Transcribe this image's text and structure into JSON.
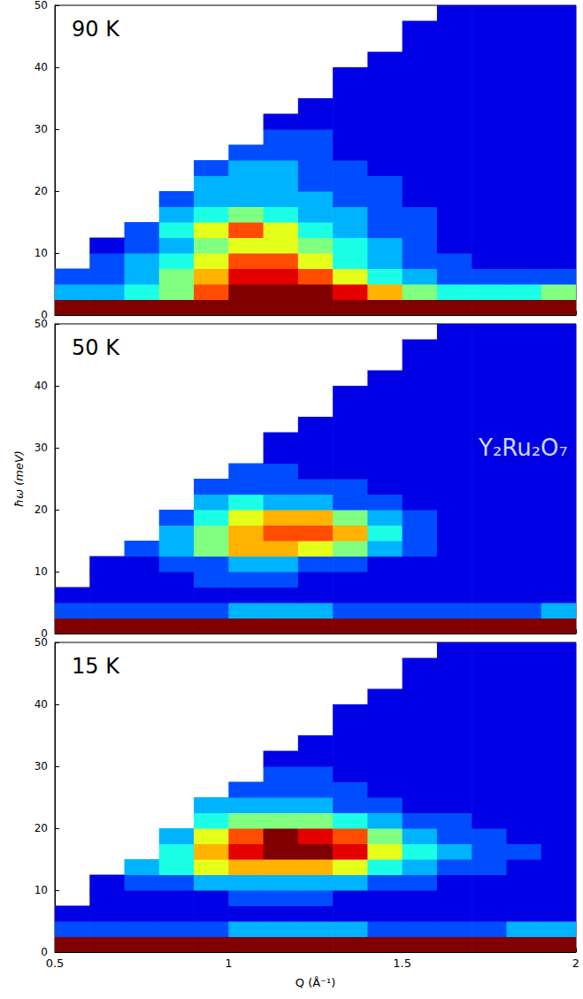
{
  "chart_data": [
    {
      "type": "heatmap",
      "title": "90 K",
      "x_edges": [
        0.5,
        0.6,
        0.7,
        0.8,
        0.9,
        1.0,
        1.1,
        1.2,
        1.3,
        1.4,
        1.5,
        1.6,
        1.7,
        1.8,
        1.9,
        2.0
      ],
      "y_edges": [
        0,
        2.5,
        5,
        7.5,
        10,
        12.5,
        15,
        17.5,
        20,
        22.5,
        25,
        27.5,
        30,
        32.5,
        35,
        37.5,
        40,
        42.5,
        45,
        47.5,
        50
      ],
      "z": [
        [
          10,
          10,
          10,
          10,
          10,
          10,
          10,
          10,
          10,
          10,
          10,
          10,
          10,
          10,
          10
        ],
        [
          3,
          3,
          4,
          5,
          8,
          10,
          10,
          10,
          9,
          7,
          5,
          4,
          4,
          4,
          5
        ],
        [
          2,
          2,
          3,
          5,
          7,
          9,
          9,
          8,
          6,
          4,
          3,
          2,
          2,
          2,
          2
        ],
        [
          null,
          2,
          3,
          4,
          6,
          8,
          8,
          6,
          4,
          3,
          2,
          2,
          1,
          1,
          1
        ],
        [
          null,
          1,
          2,
          3,
          5,
          6,
          6,
          5,
          4,
          3,
          2,
          1,
          1,
          1,
          1
        ],
        [
          null,
          null,
          2,
          4,
          6,
          8,
          6,
          4,
          3,
          2,
          2,
          1,
          1,
          1,
          1
        ],
        [
          null,
          null,
          null,
          3,
          4,
          5,
          4,
          3,
          3,
          2,
          2,
          1,
          1,
          1,
          1
        ],
        [
          null,
          null,
          null,
          2,
          3,
          3,
          3,
          3,
          2,
          2,
          1,
          1,
          1,
          1,
          1
        ],
        [
          null,
          null,
          null,
          null,
          3,
          3,
          3,
          2,
          2,
          2,
          1,
          1,
          1,
          1,
          1
        ],
        [
          null,
          null,
          null,
          null,
          2,
          3,
          3,
          2,
          2,
          1,
          1,
          1,
          1,
          1,
          1
        ],
        [
          null,
          null,
          null,
          null,
          null,
          2,
          2,
          2,
          1,
          1,
          1,
          1,
          1,
          1,
          1
        ],
        [
          null,
          null,
          null,
          null,
          null,
          null,
          2,
          2,
          1,
          1,
          1,
          1,
          1,
          1,
          1
        ],
        [
          null,
          null,
          null,
          null,
          null,
          null,
          1,
          1,
          1,
          1,
          1,
          1,
          1,
          1,
          1
        ],
        [
          null,
          null,
          null,
          null,
          null,
          null,
          null,
          1,
          1,
          1,
          1,
          1,
          1,
          1,
          1
        ],
        [
          null,
          null,
          null,
          null,
          null,
          null,
          null,
          null,
          1,
          1,
          1,
          1,
          1,
          1,
          1
        ],
        [
          null,
          null,
          null,
          null,
          null,
          null,
          null,
          null,
          1,
          1,
          1,
          1,
          1,
          1,
          1
        ],
        [
          null,
          null,
          null,
          null,
          null,
          null,
          null,
          null,
          null,
          1,
          1,
          1,
          1,
          1,
          1
        ],
        [
          null,
          null,
          null,
          null,
          null,
          null,
          null,
          null,
          null,
          null,
          1,
          1,
          1,
          1,
          1
        ],
        [
          null,
          null,
          null,
          null,
          null,
          null,
          null,
          null,
          null,
          null,
          1,
          1,
          1,
          1,
          1
        ],
        [
          null,
          null,
          null,
          null,
          null,
          null,
          null,
          null,
          null,
          null,
          null,
          1,
          1,
          1,
          1
        ]
      ],
      "zlim": [
        0,
        10
      ],
      "xlim": [
        0.5,
        2
      ],
      "xticks": [
        0.5,
        1,
        1.5,
        2
      ],
      "ylim": [
        0,
        50
      ],
      "yticks": [
        0,
        10,
        20,
        30,
        40,
        50
      ],
      "tick_labels": "y"
    },
    {
      "type": "heatmap",
      "title": "50 K",
      "ylabel": "ħω (meV)",
      "annotation": "Y₂Ru₂O₇",
      "x_edges": [
        0.5,
        0.6,
        0.7,
        0.8,
        0.9,
        1.0,
        1.1,
        1.2,
        1.3,
        1.4,
        1.5,
        1.6,
        1.7,
        1.8,
        1.9,
        2.0
      ],
      "y_edges": [
        0,
        2.5,
        5,
        7.5,
        10,
        12.5,
        15,
        17.5,
        20,
        22.5,
        25,
        27.5,
        30,
        32.5,
        35,
        37.5,
        40,
        42.5,
        45,
        47.5,
        50
      ],
      "z": [
        [
          10,
          10,
          10,
          10,
          10,
          10,
          10,
          10,
          10,
          10,
          10,
          10,
          10,
          10,
          10
        ],
        [
          2,
          2,
          2,
          2,
          2,
          3,
          3,
          3,
          2,
          2,
          2,
          2,
          2,
          2,
          3
        ],
        [
          1,
          1,
          1,
          1,
          1,
          1,
          1,
          1,
          1,
          1,
          1,
          1,
          1,
          1,
          1
        ],
        [
          null,
          1,
          1,
          1,
          2,
          2,
          2,
          1,
          1,
          1,
          1,
          1,
          1,
          1,
          1
        ],
        [
          null,
          1,
          1,
          2,
          2,
          3,
          3,
          2,
          2,
          1,
          1,
          1,
          1,
          1,
          1
        ],
        [
          null,
          null,
          2,
          3,
          5,
          7,
          7,
          6,
          5,
          3,
          2,
          1,
          1,
          1,
          1
        ],
        [
          null,
          null,
          null,
          3,
          5,
          7,
          8,
          8,
          7,
          4,
          2,
          1,
          1,
          1,
          1
        ],
        [
          null,
          null,
          null,
          2,
          4,
          6,
          7,
          7,
          5,
          3,
          2,
          1,
          1,
          1,
          1
        ],
        [
          null,
          null,
          null,
          null,
          3,
          4,
          3,
          3,
          2,
          2,
          1,
          1,
          1,
          1,
          1
        ],
        [
          null,
          null,
          null,
          null,
          2,
          2,
          2,
          2,
          2,
          1,
          1,
          1,
          1,
          1,
          1
        ],
        [
          null,
          null,
          null,
          null,
          null,
          2,
          2,
          1,
          1,
          1,
          1,
          1,
          1,
          1,
          1
        ],
        [
          null,
          null,
          null,
          null,
          null,
          null,
          1,
          1,
          1,
          1,
          1,
          1,
          1,
          1,
          1
        ],
        [
          null,
          null,
          null,
          null,
          null,
          null,
          1,
          1,
          1,
          1,
          1,
          1,
          1,
          1,
          1
        ],
        [
          null,
          null,
          null,
          null,
          null,
          null,
          null,
          1,
          1,
          1,
          1,
          1,
          1,
          1,
          1
        ],
        [
          null,
          null,
          null,
          null,
          null,
          null,
          null,
          null,
          1,
          1,
          1,
          1,
          1,
          1,
          1
        ],
        [
          null,
          null,
          null,
          null,
          null,
          null,
          null,
          null,
          1,
          1,
          1,
          1,
          1,
          1,
          1
        ],
        [
          null,
          null,
          null,
          null,
          null,
          null,
          null,
          null,
          null,
          1,
          1,
          1,
          1,
          1,
          1
        ],
        [
          null,
          null,
          null,
          null,
          null,
          null,
          null,
          null,
          null,
          null,
          1,
          1,
          1,
          1,
          1
        ],
        [
          null,
          null,
          null,
          null,
          null,
          null,
          null,
          null,
          null,
          null,
          1,
          1,
          1,
          1,
          1
        ],
        [
          null,
          null,
          null,
          null,
          null,
          null,
          null,
          null,
          null,
          null,
          null,
          1,
          1,
          1,
          1
        ]
      ],
      "zlim": [
        0,
        10
      ],
      "xlim": [
        0.5,
        2
      ],
      "xticks": [
        0.5,
        1,
        1.5,
        2
      ],
      "ylim": [
        0,
        50
      ],
      "yticks": [
        0,
        10,
        20,
        30,
        40,
        50
      ],
      "tick_labels": "y"
    },
    {
      "type": "heatmap",
      "title": "15 K",
      "xlabel": "Q (Å⁻¹)",
      "x_edges": [
        0.5,
        0.6,
        0.7,
        0.8,
        0.9,
        1.0,
        1.1,
        1.2,
        1.3,
        1.4,
        1.5,
        1.6,
        1.7,
        1.8,
        1.9,
        2.0
      ],
      "y_edges": [
        0,
        2.5,
        5,
        7.5,
        10,
        12.5,
        15,
        17.5,
        20,
        22.5,
        25,
        27.5,
        30,
        32.5,
        35,
        37.5,
        40,
        42.5,
        45,
        47.5,
        50
      ],
      "z": [
        [
          10,
          10,
          10,
          10,
          10,
          10,
          10,
          10,
          10,
          10,
          10,
          10,
          10,
          10,
          10
        ],
        [
          2,
          2,
          2,
          2,
          2,
          3,
          3,
          3,
          3,
          2,
          2,
          2,
          2,
          3,
          3
        ],
        [
          1,
          1,
          1,
          1,
          1,
          1,
          1,
          1,
          1,
          1,
          1,
          1,
          1,
          1,
          1
        ],
        [
          null,
          1,
          1,
          1,
          1,
          2,
          2,
          2,
          1,
          1,
          1,
          1,
          1,
          1,
          1
        ],
        [
          null,
          1,
          2,
          2,
          3,
          3,
          3,
          3,
          3,
          2,
          2,
          1,
          1,
          1,
          1
        ],
        [
          null,
          null,
          3,
          4,
          6,
          7,
          7,
          7,
          6,
          4,
          3,
          2,
          2,
          1,
          1
        ],
        [
          null,
          null,
          null,
          4,
          7,
          9,
          10,
          10,
          9,
          6,
          4,
          3,
          2,
          2,
          1
        ],
        [
          null,
          null,
          null,
          3,
          6,
          8,
          10,
          9,
          8,
          5,
          3,
          2,
          2,
          1,
          1
        ],
        [
          null,
          null,
          null,
          null,
          4,
          5,
          5,
          5,
          4,
          3,
          2,
          2,
          1,
          1,
          1
        ],
        [
          null,
          null,
          null,
          null,
          3,
          3,
          3,
          3,
          2,
          2,
          1,
          1,
          1,
          1,
          1
        ],
        [
          null,
          null,
          null,
          null,
          null,
          2,
          2,
          2,
          2,
          1,
          1,
          1,
          1,
          1,
          1
        ],
        [
          null,
          null,
          null,
          null,
          null,
          null,
          2,
          2,
          1,
          1,
          1,
          1,
          1,
          1,
          1
        ],
        [
          null,
          null,
          null,
          null,
          null,
          null,
          1,
          1,
          1,
          1,
          1,
          1,
          1,
          1,
          1
        ],
        [
          null,
          null,
          null,
          null,
          null,
          null,
          null,
          1,
          1,
          1,
          1,
          1,
          1,
          1,
          1
        ],
        [
          null,
          null,
          null,
          null,
          null,
          null,
          null,
          null,
          1,
          1,
          1,
          1,
          1,
          1,
          1
        ],
        [
          null,
          null,
          null,
          null,
          null,
          null,
          null,
          null,
          1,
          1,
          1,
          1,
          1,
          1,
          1
        ],
        [
          null,
          null,
          null,
          null,
          null,
          null,
          null,
          null,
          null,
          1,
          1,
          1,
          1,
          1,
          1
        ],
        [
          null,
          null,
          null,
          null,
          null,
          null,
          null,
          null,
          null,
          null,
          1,
          1,
          1,
          1,
          1
        ],
        [
          null,
          null,
          null,
          null,
          null,
          null,
          null,
          null,
          null,
          null,
          1,
          1,
          1,
          1,
          1
        ],
        [
          null,
          null,
          null,
          null,
          null,
          null,
          null,
          null,
          null,
          null,
          null,
          1,
          1,
          1,
          1
        ]
      ],
      "zlim": [
        0,
        10
      ],
      "xlim": [
        0.5,
        2
      ],
      "xticks": [
        0.5,
        1,
        1.5,
        2
      ],
      "ylim": [
        0,
        50
      ],
      "yticks": [
        0,
        10,
        20,
        30,
        40,
        50
      ],
      "tick_labels": true
    }
  ]
}
